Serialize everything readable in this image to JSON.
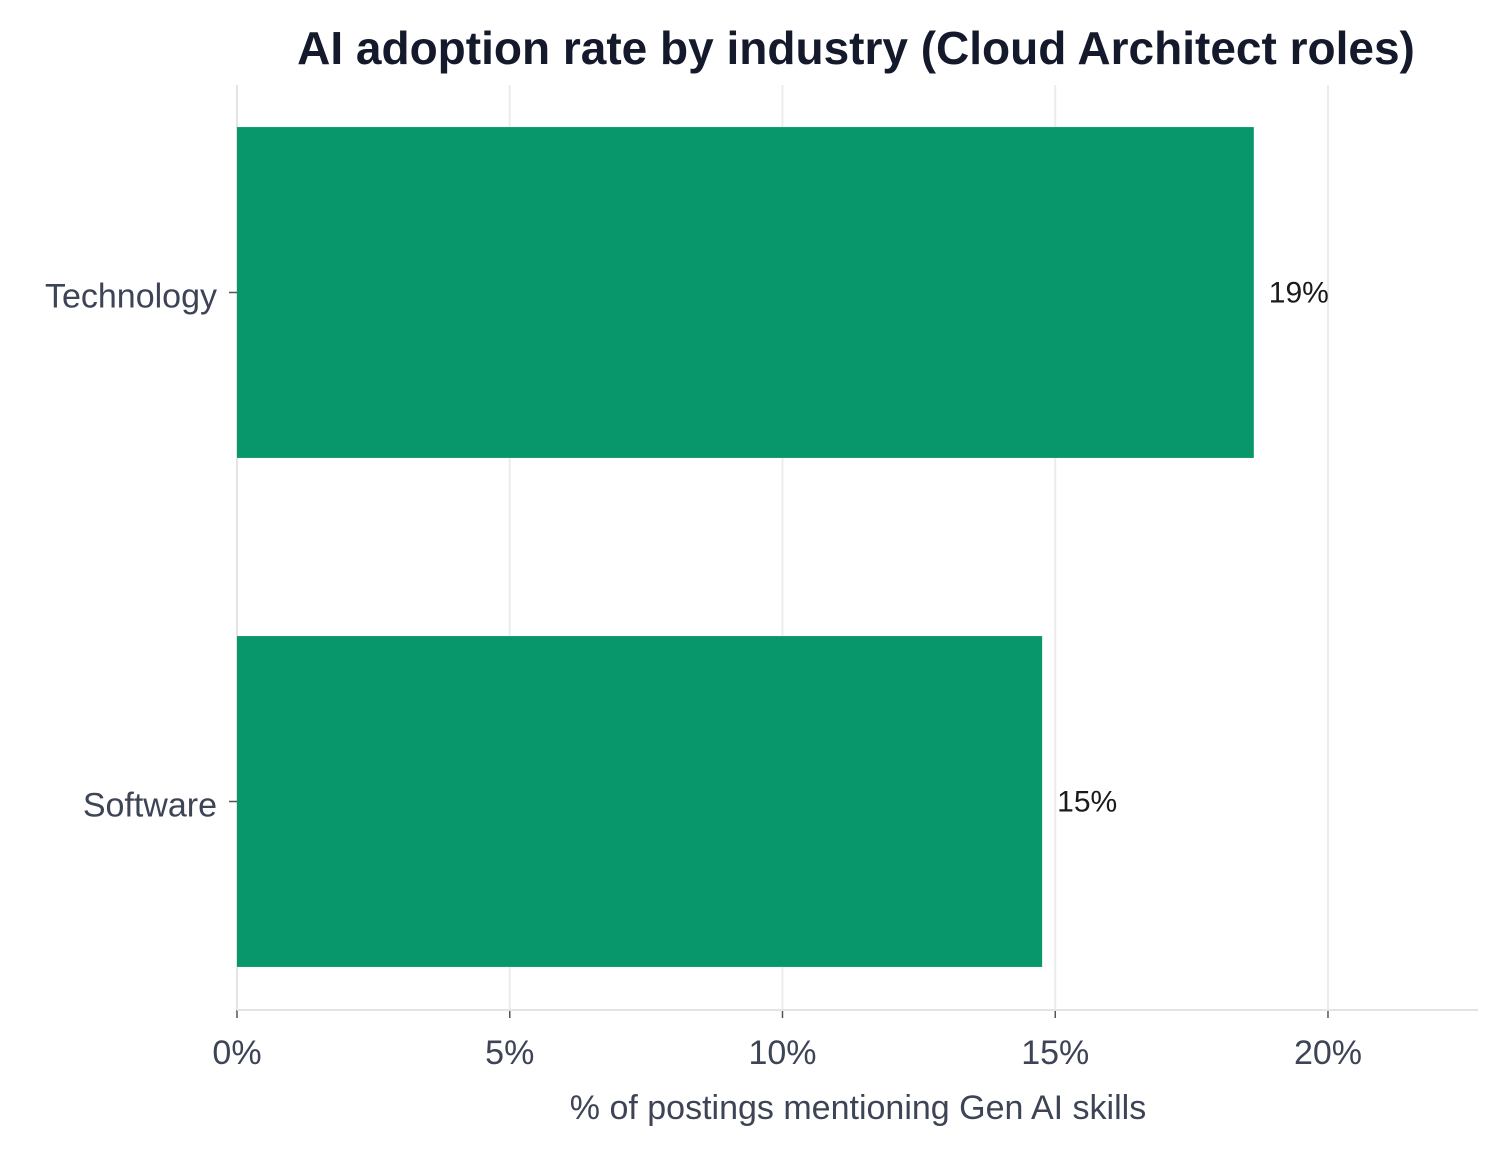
{
  "chart_data": {
    "type": "bar",
    "orientation": "horizontal",
    "title": "AI adoption rate by industry (Cloud Architect roles)",
    "x_label": "% of postings mentioning Gen AI skills",
    "categories": [
      "Technology",
      "Software"
    ],
    "values": [
      18.64,
      14.76
    ],
    "value_labels": [
      "19%",
      "15%"
    ],
    "color": "#07976a",
    "xlim": [
      0,
      22.75
    ],
    "xticks": [
      {
        "value": 0,
        "label": "0%"
      },
      {
        "value": 5,
        "label": "5%"
      },
      {
        "value": 10,
        "label": "10%"
      },
      {
        "value": 15,
        "label": "15%"
      },
      {
        "value": 20,
        "label": "20%"
      }
    ],
    "grid": true
  }
}
